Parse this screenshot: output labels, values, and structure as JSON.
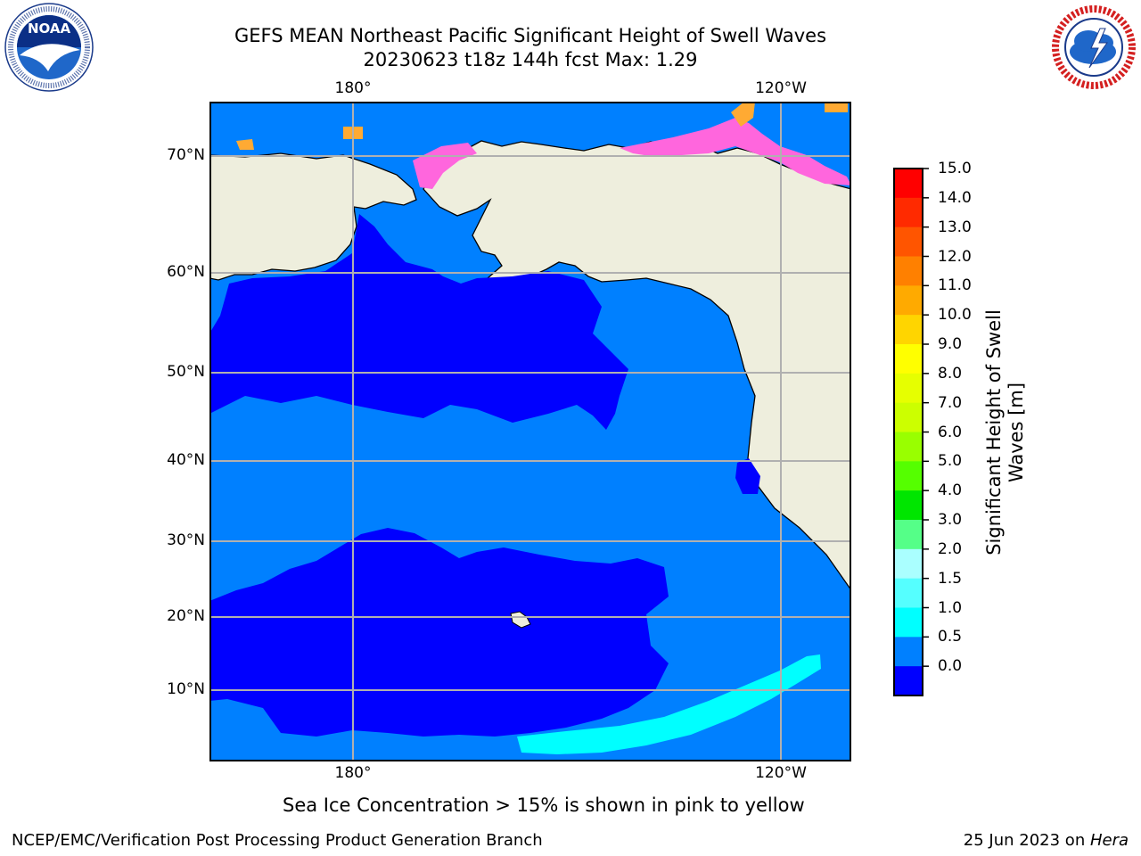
{
  "header": {
    "title_line1": "GEFS MEAN Northeast Pacific Significant Height of Swell Waves",
    "title_line2": "20230623 t18z 144h fcst   Max: 1.29"
  },
  "logos": {
    "left": "noaa-logo",
    "left_text": "NOAA",
    "left_ring_text": "NATIONAL OCEANIC AND ATMOSPHERIC ADMINISTRATION · U.S. DEPARTMENT OF COMMERCE",
    "right": "nws-logo",
    "right_ring_text": "NATIONAL WEATHER SERVICE"
  },
  "map": {
    "lon_labels_top": [
      "180°",
      "120°W"
    ],
    "lon_labels_bottom": [
      "180°",
      "120°W"
    ],
    "lat_labels": [
      "70°N",
      "60°N",
      "50°N",
      "40°N",
      "30°N",
      "20°N",
      "10°N"
    ],
    "colors": {
      "land": "#eeeedd",
      "sea_low": "#0000ff",
      "sea_mid": "#0080ff",
      "sea_high": "#00ffff",
      "ice_pink": "#ff66dd",
      "ice_orange": "#ffaa33",
      "grid": "#b0b0b0"
    }
  },
  "colorbar": {
    "title_line1": "Significant Height of Swell",
    "title_line2": "Waves [m]",
    "ticks": [
      "15.0",
      "14.0",
      "13.0",
      "12.0",
      "11.0",
      "10.0",
      "9.0",
      "8.0",
      "7.0",
      "6.0",
      "5.0",
      "4.0",
      "3.0",
      "2.0",
      "1.5",
      "1.0",
      "0.5",
      "0.0"
    ],
    "colors": [
      "#ff0000",
      "#ff2a00",
      "#ff5500",
      "#ff8000",
      "#ffaa00",
      "#ffd500",
      "#ffff00",
      "#e6ff00",
      "#ccff00",
      "#99ff00",
      "#55ff00",
      "#00e600",
      "#55ff88",
      "#aaffff",
      "#55ffff",
      "#00ffff",
      "#0080ff",
      "#0000ff"
    ]
  },
  "note": "Sea Ice Concentration > 15% is shown in pink to yellow",
  "footer": {
    "left": "NCEP/EMC/Verification Post Processing Product Generation Branch",
    "right_date": "25 Jun 2023 on ",
    "right_host": "Hera"
  }
}
